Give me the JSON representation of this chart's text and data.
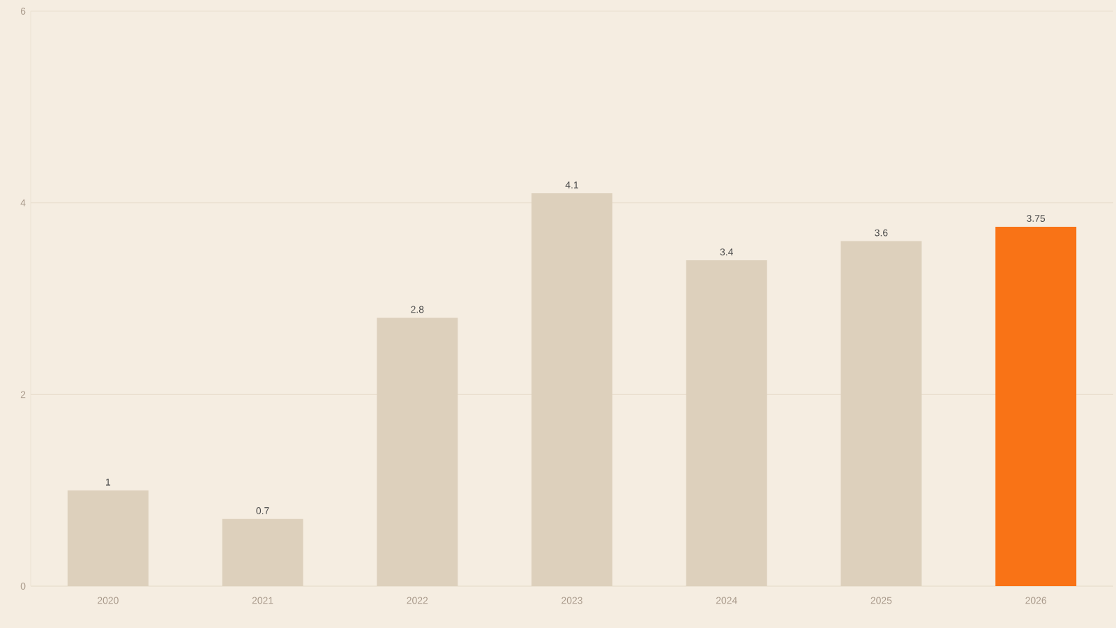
{
  "chart_data": {
    "type": "bar",
    "categories": [
      "2020",
      "2021",
      "2022",
      "2023",
      "2024",
      "2025",
      "2026"
    ],
    "values": [
      1,
      0.7,
      2.8,
      4.1,
      3.4,
      3.6,
      3.75
    ],
    "colors": [
      "#ddd0bc",
      "#ddd0bc",
      "#ddd0bc",
      "#ddd0bc",
      "#ddd0bc",
      "#ddd0bc",
      "#f97316"
    ],
    "ylim": [
      0,
      6
    ],
    "yticks": [
      0,
      2,
      4,
      6
    ],
    "grid": "y",
    "data_labels": true
  }
}
